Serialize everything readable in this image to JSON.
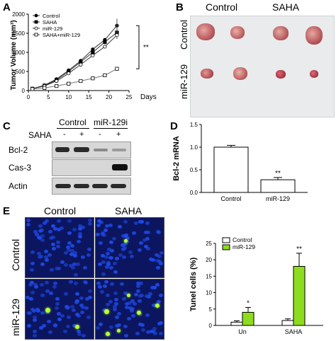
{
  "panels": {
    "A": {
      "letter": "A",
      "ylabel": "Tumor Volume (mm³)",
      "xlabel": "Days",
      "significance": "**",
      "legend": [
        "Control",
        "SAHA",
        "miR-129",
        "SAHA+miR-129"
      ]
    },
    "B": {
      "letter": "B",
      "col_labels": [
        "Control",
        "SAHA"
      ],
      "row_labels": [
        "Control",
        "miR-129"
      ]
    },
    "C": {
      "letter": "C",
      "col_labels": [
        "Control",
        "miR-129i"
      ],
      "saha_label": "SAHA",
      "saha_marks": [
        "-",
        "+",
        "-",
        "+"
      ],
      "rows": [
        "Bcl-2",
        "Cas-3",
        "Actin"
      ]
    },
    "D": {
      "letter": "D",
      "ylabel": "Bcl-2 mRNA",
      "significance": "**"
    },
    "E": {
      "letter": "E",
      "col_labels": [
        "Control",
        "SAHA"
      ],
      "row_labels": [
        "Control",
        "miR-129"
      ],
      "ylabel": "Tunel cells (%)",
      "legend": [
        "Control",
        "miR-129"
      ],
      "sig_un": "*",
      "sig_saha": "**"
    }
  },
  "chart_data": [
    {
      "type": "line",
      "panel": "A",
      "xlabel": "Days",
      "ylabel": "Tumor Volume (mm³)",
      "xlim": [
        0,
        25
      ],
      "ylim": [
        0,
        2000
      ],
      "xticks": [
        "0",
        "5",
        "10",
        "15",
        "20",
        "25"
      ],
      "yticks": [
        "0",
        "500",
        "1000",
        "1500",
        "2000"
      ],
      "x": [
        1,
        4,
        7,
        10,
        13,
        16,
        19,
        22
      ],
      "series": [
        {
          "name": "Control",
          "values": [
            50,
            140,
            300,
            530,
            780,
            1080,
            1330,
            1700
          ],
          "marker": "filled-circle"
        },
        {
          "name": "SAHA",
          "values": [
            50,
            130,
            280,
            500,
            750,
            1000,
            1270,
            1520
          ],
          "marker": "filled-square"
        },
        {
          "name": "miR-129",
          "values": [
            50,
            120,
            250,
            450,
            680,
            920,
            1150,
            1450
          ],
          "marker": "open-circle"
        },
        {
          "name": "SAHA+miR-129",
          "values": [
            40,
            70,
            120,
            180,
            250,
            320,
            400,
            570
          ],
          "marker": "open-square"
        }
      ],
      "significance": "**",
      "legend_position": "top-left",
      "grid": false
    },
    {
      "type": "bar",
      "panel": "D",
      "ylabel": "Bcl-2 mRNA",
      "categories": [
        "Control",
        "miR-129"
      ],
      "values": [
        1.0,
        0.28
      ],
      "errors": [
        0.04,
        0.05
      ],
      "ylim": [
        0,
        1.5
      ],
      "yticks": [
        "0.0",
        "0.5",
        "1.0",
        "1.5"
      ],
      "significance": [
        "",
        "**"
      ],
      "grid": false
    },
    {
      "type": "bar",
      "panel": "E",
      "ylabel": "Tunel cells (%)",
      "categories": [
        "Un",
        "SAHA"
      ],
      "series": [
        {
          "name": "Control",
          "values": [
            1.0,
            1.5
          ],
          "errors": [
            0.4,
            0.5
          ],
          "color": "#ffffff"
        },
        {
          "name": "miR-129",
          "values": [
            4.0,
            18.0
          ],
          "errors": [
            1.5,
            4.0
          ],
          "color": "#8ddc1e"
        }
      ],
      "ylim": [
        0,
        25
      ],
      "yticks": [
        "0",
        "5",
        "10",
        "15",
        "20",
        "25"
      ],
      "significance": {
        "Un": "*",
        "SAHA": "**"
      },
      "legend_position": "top-left",
      "grid": false
    }
  ]
}
